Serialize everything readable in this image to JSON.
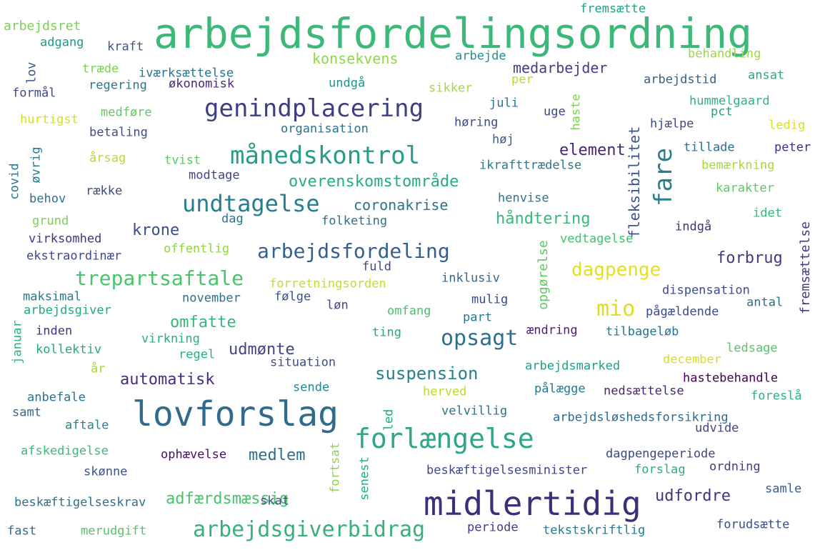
{
  "word_cloud": {
    "words": [
      {
        "text": "arbejdsfordelingsordning",
        "color": "#3cb878"
      },
      {
        "text": "lovforslag",
        "color": "#2f6b8e"
      },
      {
        "text": "midlertidig",
        "color": "#3b2f7a"
      },
      {
        "text": "forlængelse",
        "color": "#2fa58a"
      },
      {
        "text": "genindplacering",
        "color": "#3d3f80"
      },
      {
        "text": "månedskontrol",
        "color": "#2a9a89"
      },
      {
        "text": "undtagelse",
        "color": "#237f8e"
      },
      {
        "text": "arbejdsgiverbidrag",
        "color": "#3aaf7c"
      },
      {
        "text": "fare",
        "color": "#2a7f8e"
      },
      {
        "text": "opsagt",
        "color": "#2e6f8e"
      },
      {
        "text": "arbejdsfordeling",
        "color": "#35608d"
      },
      {
        "text": "trepartsaftale",
        "color": "#4cc26c"
      },
      {
        "text": "mio",
        "color": "#e0df1e"
      },
      {
        "text": "dagpenge",
        "color": "#e3df22"
      },
      {
        "text": "suspension",
        "color": "#27808e"
      },
      {
        "text": "automatisk",
        "color": "#472d7b"
      },
      {
        "text": "udmønte",
        "color": "#414487"
      },
      {
        "text": "omfatte",
        "color": "#35b779"
      },
      {
        "text": "adfærdsmæssig",
        "color": "#4ac16d"
      },
      {
        "text": "medlem",
        "color": "#2e6e8e"
      },
      {
        "text": "udfordre",
        "color": "#46327e"
      },
      {
        "text": "krone",
        "color": "#3d4d8a"
      },
      {
        "text": "forbrug",
        "color": "#443a83"
      },
      {
        "text": "håndtering",
        "color": "#37b878"
      },
      {
        "text": "element",
        "color": "#482475"
      },
      {
        "text": "overenskomstområde",
        "color": "#27ad81"
      },
      {
        "text": "konsekvens",
        "color": "#8fd744"
      },
      {
        "text": "medarbejder",
        "color": "#433e85"
      },
      {
        "text": "coronakrise",
        "color": "#2c728e"
      },
      {
        "text": "fleksibilitet",
        "color": "#3b528b"
      },
      {
        "text": "fremsættelse",
        "color": "#453781"
      },
      {
        "text": "opgørelse",
        "color": "#5ec962"
      },
      {
        "text": "arbejdsret",
        "color": "#7ad151"
      },
      {
        "text": "fremsætte",
        "color": "#20a386"
      },
      {
        "text": "adgang",
        "color": "#1f998a"
      },
      {
        "text": "kraft",
        "color": "#3b528b"
      },
      {
        "text": "arbejde",
        "color": "#2c8a8d"
      },
      {
        "text": "behandling",
        "color": "#9bd93c"
      },
      {
        "text": "lov",
        "color": "#3b528b"
      },
      {
        "text": "træde",
        "color": "#7ad151"
      },
      {
        "text": "iværksættelse",
        "color": "#2c728e"
      },
      {
        "text": "regering",
        "color": "#2a788e"
      },
      {
        "text": "økonomisk",
        "color": "#482878"
      },
      {
        "text": "undgå",
        "color": "#21918c"
      },
      {
        "text": "per",
        "color": "#b5de2b"
      },
      {
        "text": "arbejdstid",
        "color": "#355f8d"
      },
      {
        "text": "ansat",
        "color": "#25ac82"
      },
      {
        "text": "formål",
        "color": "#3e4989"
      },
      {
        "text": "sikker",
        "color": "#a0da39"
      },
      {
        "text": "haste",
        "color": "#7fd34e"
      },
      {
        "text": "hummelgaard",
        "color": "#2fb47c"
      },
      {
        "text": "medføre",
        "color": "#60ca60"
      },
      {
        "text": "juli",
        "color": "#2c728e"
      },
      {
        "text": "uge",
        "color": "#3f4788"
      },
      {
        "text": "pct",
        "color": "#20a386"
      },
      {
        "text": "hurtigst",
        "color": "#d2e21b"
      },
      {
        "text": "høring",
        "color": "#3e4a89"
      },
      {
        "text": "hjælpe",
        "color": "#3f4889"
      },
      {
        "text": "ledig",
        "color": "#d8e219"
      },
      {
        "text": "organisation",
        "color": "#2c728e"
      },
      {
        "text": "betaling",
        "color": "#3e4a89"
      },
      {
        "text": "høj",
        "color": "#355f8d"
      },
      {
        "text": "årsag",
        "color": "#b2dd2d"
      },
      {
        "text": "tvist",
        "color": "#5ac864"
      },
      {
        "text": "tillade",
        "color": "#2e6d8e"
      },
      {
        "text": "peter",
        "color": "#462f7c"
      },
      {
        "text": "øvrig",
        "color": "#2a788e"
      },
      {
        "text": "covid",
        "color": "#2c738e"
      },
      {
        "text": "ikrafttrædelse",
        "color": "#2a788e"
      },
      {
        "text": "bemærkning",
        "color": "#a5db36"
      },
      {
        "text": "modtage",
        "color": "#3f4788"
      },
      {
        "text": "række",
        "color": "#3e4989"
      },
      {
        "text": "karakter",
        "color": "#5ec962"
      },
      {
        "text": "behov",
        "color": "#2e6e8e"
      },
      {
        "text": "henvise",
        "color": "#2a768e"
      },
      {
        "text": "grund",
        "color": "#7ad151"
      },
      {
        "text": "dag",
        "color": "#2d718e"
      },
      {
        "text": "folketing",
        "color": "#2d708e"
      },
      {
        "text": "idet",
        "color": "#35b779"
      },
      {
        "text": "virksomhed",
        "color": "#46337e"
      },
      {
        "text": "indgå",
        "color": "#46327e"
      },
      {
        "text": "vedtagelse",
        "color": "#44bf70"
      },
      {
        "text": "offentlig",
        "color": "#90d743"
      },
      {
        "text": "ekstraordinær",
        "color": "#3e4a89"
      },
      {
        "text": "fuld",
        "color": "#3f4788"
      },
      {
        "text": "forretningsorden",
        "color": "#c0df25"
      },
      {
        "text": "inklusiv",
        "color": "#31688e"
      },
      {
        "text": "maksimal",
        "color": "#2a788e"
      },
      {
        "text": "november",
        "color": "#2c728e"
      },
      {
        "text": "følge",
        "color": "#3b528b"
      },
      {
        "text": "mulig",
        "color": "#3e4989"
      },
      {
        "text": "dispensation",
        "color": "#3e4c8a"
      },
      {
        "text": "arbejdsgiver",
        "color": "#22a785"
      },
      {
        "text": "løn",
        "color": "#3f4889"
      },
      {
        "text": "omfang",
        "color": "#4ac16d"
      },
      {
        "text": "part",
        "color": "#2a788e"
      },
      {
        "text": "pågældende",
        "color": "#3e4989"
      },
      {
        "text": "antal",
        "color": "#2d708e"
      },
      {
        "text": "januar",
        "color": "#2db27d"
      },
      {
        "text": "inden",
        "color": "#46327e"
      },
      {
        "text": "ting",
        "color": "#22a884"
      },
      {
        "text": "ændring",
        "color": "#481f70"
      },
      {
        "text": "tilbageløb",
        "color": "#2c728e"
      },
      {
        "text": "kollektiv",
        "color": "#22a884"
      },
      {
        "text": "virkning",
        "color": "#29af7f"
      },
      {
        "text": "regel",
        "color": "#2ab07f"
      },
      {
        "text": "ledsage",
        "color": "#56c667"
      },
      {
        "text": "december",
        "color": "#d5e21a"
      },
      {
        "text": "situation",
        "color": "#3e4c8a"
      },
      {
        "text": "år",
        "color": "#a2da37"
      },
      {
        "text": "arbejdsmarked",
        "color": "#1fa088"
      },
      {
        "text": "hastebehandle",
        "color": "#440154"
      },
      {
        "text": "anbefale",
        "color": "#2d718e"
      },
      {
        "text": "sende",
        "color": "#25848e"
      },
      {
        "text": "herved",
        "color": "#bade28"
      },
      {
        "text": "pålægge",
        "color": "#2a788e"
      },
      {
        "text": "nedsættelse",
        "color": "#482677"
      },
      {
        "text": "foreslå",
        "color": "#2db27d"
      },
      {
        "text": "samt",
        "color": "#306a8e"
      },
      {
        "text": "velvillig",
        "color": "#2c728e"
      },
      {
        "text": "arbejdsløshedsforsikring",
        "color": "#306a8e"
      },
      {
        "text": "aftale",
        "color": "#26828e"
      },
      {
        "text": "udvide",
        "color": "#3f4889"
      },
      {
        "text": "led",
        "color": "#22a884"
      },
      {
        "text": "fortsat",
        "color": "#8ed645"
      },
      {
        "text": "senest",
        "color": "#26ad81"
      },
      {
        "text": "afskedigelse",
        "color": "#3aba76"
      },
      {
        "text": "ophævelse",
        "color": "#471063"
      },
      {
        "text": "dagpengeperiode",
        "color": "#3f4788"
      },
      {
        "text": "skønne",
        "color": "#3b528b"
      },
      {
        "text": "forslag",
        "color": "#29af7f"
      },
      {
        "text": "ordning",
        "color": "#433e85"
      },
      {
        "text": "beskæftigelsesminister",
        "color": "#3f4788"
      },
      {
        "text": "samle",
        "color": "#38598c"
      },
      {
        "text": "beskæftigelseskrav",
        "color": "#2c728e"
      },
      {
        "text": "skat",
        "color": "#3b528b"
      },
      {
        "text": "fast",
        "color": "#31688e"
      },
      {
        "text": "merudgift",
        "color": "#54c568"
      },
      {
        "text": "periode",
        "color": "#433e85"
      },
      {
        "text": "tekstskriftlig",
        "color": "#2a788e"
      },
      {
        "text": "forudsætte",
        "color": "#3d4d8a"
      }
    ]
  }
}
